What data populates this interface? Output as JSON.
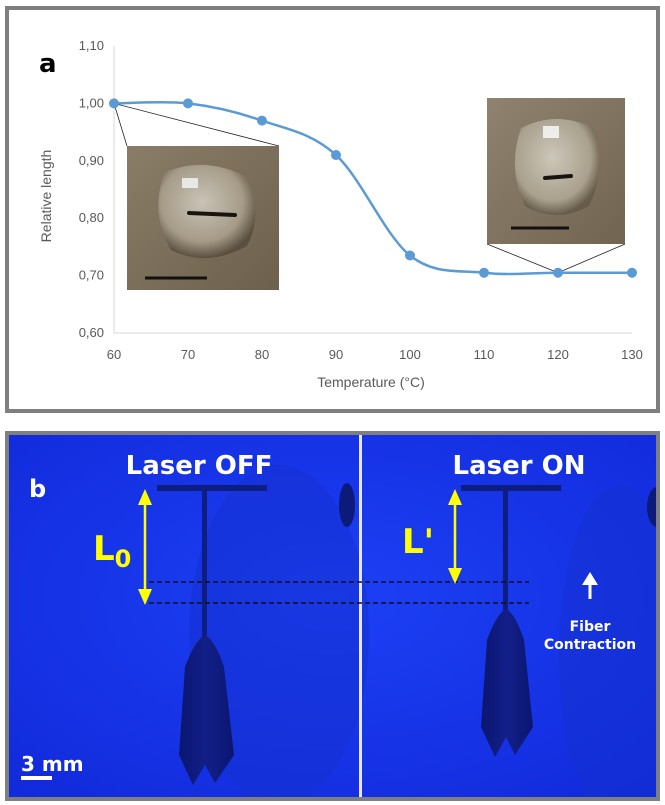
{
  "chart_data": {
    "type": "line",
    "panel_label": "a",
    "xlabel": "Temperature (°C)",
    "ylabel": "Relative length",
    "x": [
      60,
      70,
      80,
      90,
      100,
      110,
      120,
      130
    ],
    "y": [
      1.0,
      1.0,
      0.97,
      0.91,
      0.735,
      0.705,
      0.705,
      0.705
    ],
    "xlim": [
      60,
      130
    ],
    "ylim": [
      0.6,
      1.1
    ],
    "xticks": [
      "60",
      "70",
      "80",
      "90",
      "100",
      "110",
      "120",
      "130"
    ],
    "yticks": [
      "0,60",
      "0,70",
      "0,80",
      "0,90",
      "1,00",
      "1,10"
    ],
    "grid": false,
    "line_color": "#5b9bd5",
    "smooth": true,
    "insets": [
      {
        "attached_to_x": 60,
        "attached_to_y": 1.0,
        "content": "photo of droplet with fiber at 60 °C"
      },
      {
        "attached_to_x": 120,
        "attached_to_y": 0.705,
        "content": "photo of droplet with fiber at 120 °C"
      }
    ]
  },
  "panel_b": {
    "label": "b",
    "left_title": "Laser OFF",
    "right_title": "Laser ON",
    "l0_label_main": "L",
    "l0_label_sub": "0",
    "lprime_label": "L'",
    "contraction_line1": "Fiber",
    "contraction_line2": "Contraction",
    "scale_label": "3 mm",
    "background_color": "#1433ee",
    "annotation_color": "#ffff00"
  }
}
